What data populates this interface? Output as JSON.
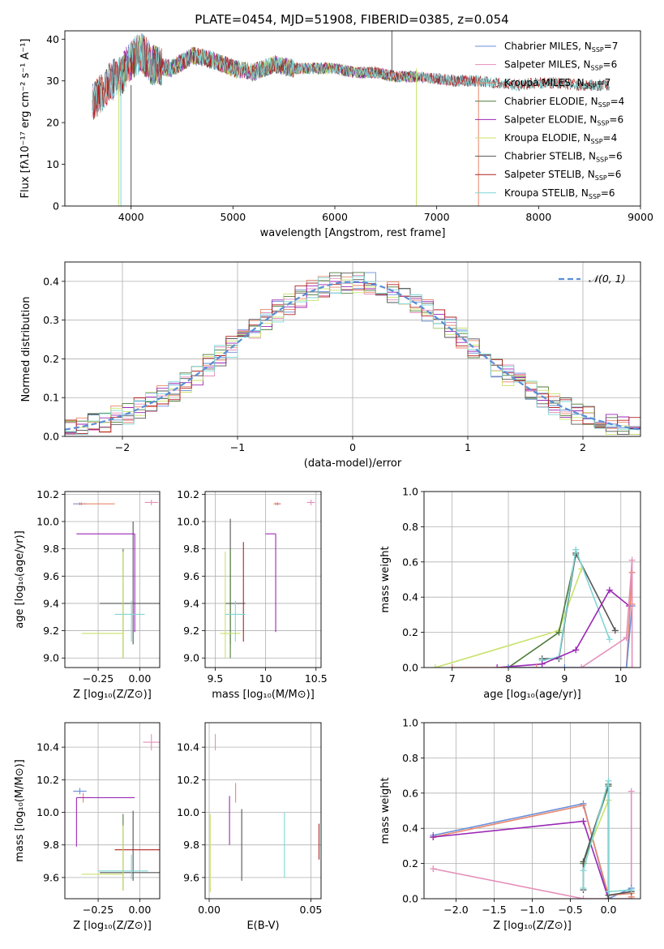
{
  "figure_title": "PLATE=0454, MJD=51908, FIBERID=0385, z=0.054",
  "colors": {
    "chabrier_miles": "#6a8fd8",
    "salpeter_miles": "#e58fb9",
    "kroupa_miles": "#e8866b",
    "chabrier_elodie": "#4d7a38",
    "salpeter_elodie": "#9b27b5",
    "kroupa_elodie": "#c8e26a",
    "chabrier_stelib": "#555555",
    "salpeter_stelib": "#b22222",
    "kroupa_stelib": "#7fd6d6",
    "normal_curve": "#5a8ed6",
    "accent_orange": "#e07a2a"
  },
  "chart_data": [
    {
      "type": "line",
      "title": "PLATE=0454, MJD=51908, FIBERID=0385, z=0.054",
      "xlabel": "wavelength [Angstrom, rest frame]",
      "ylabel": "Flux [fλ10⁻¹⁷ erg cm⁻² s⁻¹ A⁻¹]",
      "xlim": [
        3350,
        9000
      ],
      "ylim": [
        0,
        42
      ],
      "xticks": [
        4000,
        5000,
        6000,
        7000,
        8000,
        9000
      ],
      "yticks": [
        0,
        10,
        20,
        30,
        40
      ],
      "legend": "top-right",
      "series": [
        {
          "name": "Chabrier MILES, N_SSP=7",
          "key": "chabrier_miles",
          "xmin": 3620,
          "xmax": 7400
        },
        {
          "name": "Salpeter MILES, N_SSP=6",
          "key": "salpeter_miles",
          "xmin": 3620,
          "xmax": 7400
        },
        {
          "name": "Kroupa MILES, N_SSP=7",
          "key": "kroupa_miles",
          "xmin": 3620,
          "xmax": 7400
        },
        {
          "name": "Chabrier ELODIE, N_SSP=4",
          "key": "chabrier_elodie",
          "xmin": 3900,
          "xmax": 6800
        },
        {
          "name": "Salpeter ELODIE, N_SSP=6",
          "key": "salpeter_elodie",
          "xmin": 3900,
          "xmax": 6800
        },
        {
          "name": "Kroupa ELODIE, N_SSP=4",
          "key": "kroupa_elodie",
          "xmin": 3900,
          "xmax": 6800
        },
        {
          "name": "Chabrier STELIB, N_SSP=6",
          "key": "chabrier_stelib",
          "xmin": 3620,
          "xmax": 8700
        },
        {
          "name": "Salpeter STELIB, N_SSP=6",
          "key": "salpeter_stelib",
          "xmin": 3620,
          "xmax": 8700
        },
        {
          "name": "Kroupa STELIB, N_SSP=6",
          "key": "kroupa_stelib",
          "xmin": 3620,
          "xmax": 8700
        }
      ],
      "flux_shape": {
        "x": [
          3620,
          3700,
          3800,
          3900,
          4000,
          4100,
          4200,
          4400,
          4600,
          4800,
          5000,
          5200,
          5400,
          5600,
          5800,
          6000,
          6200,
          6400,
          6600,
          6800,
          7000,
          7200,
          7400,
          7600,
          7800,
          8000,
          8200,
          8400,
          8600,
          8700
        ],
        "y": [
          25,
          27,
          30,
          31,
          35,
          37,
          34,
          33,
          36,
          35,
          33,
          32,
          34,
          33,
          33,
          33,
          32,
          32,
          31,
          31,
          30.5,
          30,
          30,
          29.5,
          29,
          29.5,
          29.5,
          29,
          29,
          29
        ]
      },
      "spikes": [
        {
          "x": 3880,
          "y0": 0,
          "y1": 29,
          "key": "kroupa_elodie"
        },
        {
          "x": 3900,
          "y0": 0,
          "y1": 29,
          "key": "kroupa_stelib"
        },
        {
          "x": 4000,
          "y0": 0,
          "y1": 29,
          "key": "chabrier_stelib"
        },
        {
          "x": 6560,
          "y0": 32,
          "y1": 42,
          "key": "chabrier_stelib"
        },
        {
          "x": 6800,
          "y0": 0,
          "y1": 33,
          "key": "kroupa_elodie"
        },
        {
          "x": 7410,
          "y0": 0,
          "y1": 30,
          "key": "kroupa_miles"
        }
      ]
    },
    {
      "type": "histogram",
      "xlabel": "(data-model)/error",
      "ylabel": "Normed distribution",
      "xlim": [
        -2.5,
        2.5
      ],
      "ylim": [
        0,
        0.45
      ],
      "xticks": [
        -2,
        -1,
        0,
        1,
        2
      ],
      "yticks": [
        0.0,
        0.1,
        0.2,
        0.3,
        0.4
      ],
      "bin_edges_start": -2.5,
      "bin_width": 0.1,
      "normal_label": "𝒩(0, 1)",
      "legend": "top-right"
    },
    {
      "type": "scatter",
      "xlabel": "Z [log₁₀(Z/Z⊙)]",
      "ylabel": "age  [log₁₀(age/yr)]",
      "xlim": [
        -0.45,
        0.12
      ],
      "ylim": [
        8.93,
        10.22
      ],
      "xticks": [
        -0.25,
        0.0
      ],
      "xticklabels": [
        "−0.25",
        "0.00"
      ],
      "yticks": [
        9.0,
        9.2,
        9.4,
        9.6,
        9.8,
        10.0,
        10.2
      ],
      "points": [
        {
          "key": "chabrier_miles",
          "x": -0.36,
          "y": 10.13,
          "ex": [
            0.04,
            0.04
          ],
          "ey": [
            0.01,
            0.01
          ]
        },
        {
          "key": "kroupa_miles",
          "x": -0.35,
          "y": 10.13,
          "ex": [
            0.02,
            0.2
          ],
          "ey": [
            0.01,
            0.01
          ]
        },
        {
          "key": "salpeter_miles",
          "x": 0.07,
          "y": 10.14,
          "ex": [
            0.04,
            0.04
          ],
          "ey": [
            0.02,
            0.02
          ]
        },
        {
          "key": "chabrier_stelib",
          "x": -0.04,
          "y": 9.4,
          "ex": [
            0.2,
            0.2
          ],
          "ey": [
            0.3,
            0.6
          ]
        },
        {
          "key": "salpeter_elodie",
          "x": -0.03,
          "y": 9.91,
          "ex": [
            0.35,
            0.0
          ],
          "ey": [
            0.72,
            0.0
          ]
        },
        {
          "key": "chabrier_elodie",
          "x": -0.1,
          "y": 9.5,
          "ex": [
            0.0,
            0.0
          ],
          "ey": [
            0.5,
            0.3
          ]
        },
        {
          "key": "kroupa_elodie",
          "x": -0.1,
          "y": 9.18,
          "ex": [
            0.25,
            0.0
          ],
          "ey": [
            0.18,
            0.6
          ]
        },
        {
          "key": "kroupa_stelib",
          "x": -0.05,
          "y": 9.32,
          "ex": [
            0.1,
            0.08
          ],
          "ey": [
            0.2,
            0.1
          ]
        }
      ]
    },
    {
      "type": "scatter",
      "xlabel": "mass [log₁₀(M/M⊙)]",
      "ylabel": "",
      "xlim": [
        9.4,
        10.55
      ],
      "ylim": [
        8.93,
        10.22
      ],
      "xticks": [
        9.5,
        10.0,
        10.5
      ],
      "yticks": [
        9.0,
        9.2,
        9.4,
        9.6,
        9.8,
        10.0,
        10.2
      ],
      "points": [
        {
          "key": "chabrier_miles",
          "x": 10.12,
          "y": 10.13,
          "ex": [
            0.03,
            0.03
          ],
          "ey": [
            0.01,
            0.01
          ]
        },
        {
          "key": "kroupa_miles",
          "x": 10.1,
          "y": 10.13,
          "ex": [
            0.02,
            0.05
          ],
          "ey": [
            0.01,
            0.01
          ]
        },
        {
          "key": "salpeter_miles",
          "x": 10.45,
          "y": 10.14,
          "ex": [
            0.04,
            0.04
          ],
          "ey": [
            0.02,
            0.02
          ]
        },
        {
          "key": "chabrier_stelib",
          "x": 9.65,
          "y": 9.4,
          "ex": [
            0.05,
            0.15
          ],
          "ey": [
            0.3,
            0.62
          ]
        },
        {
          "key": "salpeter_elodie",
          "x": 10.1,
          "y": 9.91,
          "ex": [
            0.1,
            0.0
          ],
          "ey": [
            0.72,
            0.0
          ]
        },
        {
          "key": "chabrier_elodie",
          "x": 9.65,
          "y": 9.5,
          "ex": [
            0.0,
            0.0
          ],
          "ey": [
            0.5,
            0.3
          ]
        },
        {
          "key": "salpeter_stelib",
          "x": 9.78,
          "y": 9.5,
          "ex": [
            0.0,
            0.0
          ],
          "ey": [
            0.38,
            0.35
          ]
        },
        {
          "key": "kroupa_elodie",
          "x": 9.6,
          "y": 9.18,
          "ex": [
            0.05,
            0.15
          ],
          "ey": [
            0.18,
            0.6
          ]
        },
        {
          "key": "kroupa_stelib",
          "x": 9.7,
          "y": 9.32,
          "ex": [
            0.1,
            0.1
          ],
          "ey": [
            0.2,
            0.1
          ]
        }
      ]
    },
    {
      "type": "line",
      "xlabel": "age  [log₁₀(age/yr)]",
      "ylabel": "mass weight",
      "xlim": [
        6.5,
        10.35
      ],
      "ylim": [
        0,
        1
      ],
      "xticks": [
        7,
        8,
        9,
        10
      ],
      "yticks": [
        0.0,
        0.2,
        0.4,
        0.6,
        0.8,
        1.0
      ],
      "series": [
        {
          "key": "kroupa_elodie",
          "x": [
            6.7,
            8.9,
            9.3
          ],
          "y": [
            0.0,
            0.21,
            0.56
          ]
        },
        {
          "key": "chabrier_elodie",
          "x": [
            8.0,
            8.9,
            9.2
          ],
          "y": [
            0.0,
            0.2,
            0.64
          ]
        },
        {
          "key": "chabrier_stelib",
          "x": [
            8.6,
            8.9,
            9.2,
            9.9
          ],
          "y": [
            0.05,
            0.05,
            0.65,
            0.21
          ]
        },
        {
          "key": "kroupa_stelib",
          "x": [
            8.6,
            8.9,
            9.2,
            9.8
          ],
          "y": [
            0.04,
            0.06,
            0.67,
            0.16
          ]
        },
        {
          "key": "salpeter_elodie",
          "x": [
            7.8,
            8.6,
            9.2,
            9.8,
            10.15
          ],
          "y": [
            0.0,
            0.02,
            0.1,
            0.44,
            0.35
          ]
        },
        {
          "key": "kroupa_miles",
          "x": [
            7.0,
            8.5,
            10.1,
            10.2,
            10.2
          ],
          "y": [
            0.0,
            0.0,
            0.0,
            0.54,
            0.36
          ]
        },
        {
          "key": "chabrier_miles",
          "x": [
            8.0,
            9.0,
            10.1,
            10.2
          ],
          "y": [
            0.0,
            0.0,
            0.0,
            0.35
          ]
        },
        {
          "key": "salpeter_miles",
          "x": [
            9.3,
            10.1,
            10.2,
            10.2
          ],
          "y": [
            0.0,
            0.17,
            0.61,
            0.0
          ]
        }
      ]
    },
    {
      "type": "scatter",
      "xlabel": "Z [log₁₀(Z/Z⊙)]",
      "ylabel": "mass [log₁₀(M/M⊙)]",
      "xlim": [
        -0.45,
        0.12
      ],
      "ylim": [
        9.47,
        10.55
      ],
      "xticks": [
        -0.25,
        0.0
      ],
      "xticklabels": [
        "−0.25",
        "0.00"
      ],
      "yticks": [
        9.6,
        9.8,
        10.0,
        10.2,
        10.4
      ],
      "points": [
        {
          "key": "chabrier_miles",
          "x": -0.36,
          "y": 10.13,
          "ex": [
            0.04,
            0.04
          ],
          "ey": [
            0.02,
            0.02
          ]
        },
        {
          "key": "kroupa_miles",
          "x": -0.34,
          "y": 10.09,
          "ex": [
            0.02,
            0.05
          ],
          "ey": [
            0.03,
            0.03
          ]
        },
        {
          "key": "salpeter_miles",
          "x": 0.07,
          "y": 10.43,
          "ex": [
            0.05,
            0.05
          ],
          "ey": [
            0.05,
            0.05
          ]
        },
        {
          "key": "salpeter_elodie",
          "x": -0.38,
          "y": 10.09,
          "ex": [
            0.0,
            0.35
          ],
          "ey": [
            0.3,
            0.0
          ]
        },
        {
          "key": "salpeter_stelib",
          "x": 0.0,
          "y": 9.77,
          "ex": [
            0.15,
            0.15
          ],
          "ey": [
            0.0,
            0.0
          ]
        },
        {
          "key": "chabrier_stelib",
          "x": -0.04,
          "y": 9.63,
          "ex": [
            0.2,
            0.2
          ],
          "ey": [
            0.05,
            0.38
          ]
        },
        {
          "key": "chabrier_elodie",
          "x": -0.1,
          "y": 9.62,
          "ex": [
            0.0,
            0.0
          ],
          "ey": [
            0.1,
            0.37
          ]
        },
        {
          "key": "kroupa_elodie",
          "x": -0.1,
          "y": 9.62,
          "ex": [
            0.25,
            0.0
          ],
          "ey": [
            0.1,
            0.3
          ]
        },
        {
          "key": "kroupa_stelib",
          "x": -0.05,
          "y": 9.64,
          "ex": [
            0.2,
            0.1
          ],
          "ey": [
            0.05,
            0.1
          ]
        }
      ]
    },
    {
      "type": "scatter",
      "xlabel": "E(B-V)",
      "ylabel": "",
      "xlim": [
        -0.002,
        0.055
      ],
      "ylim": [
        9.47,
        10.55
      ],
      "xticks": [
        0.0,
        0.05
      ],
      "xticklabels": [
        "0.00",
        "0.05"
      ],
      "yticks": [
        9.6,
        9.8,
        10.0,
        10.2,
        10.4
      ],
      "points": [
        {
          "key": "salpeter_miles",
          "x": 0.003,
          "y": 10.43,
          "ex": [
            0,
            0
          ],
          "ey": [
            0.05,
            0.05
          ]
        },
        {
          "key": "kroupa_miles",
          "x": 0.013,
          "y": 10.12,
          "ex": [
            0,
            0
          ],
          "ey": [
            0.06,
            0.06
          ]
        },
        {
          "key": "salpeter_elodie",
          "x": 0.01,
          "y": 9.95,
          "ex": [
            0,
            0
          ],
          "ey": [
            0.15,
            0.15
          ]
        },
        {
          "key": "chabrier_stelib",
          "x": 0.016,
          "y": 9.8,
          "ex": [
            0,
            0
          ],
          "ey": [
            0.22,
            0.22
          ]
        },
        {
          "key": "kroupa_elodie",
          "x": 0.0005,
          "y": 9.75,
          "ex": [
            0,
            0
          ],
          "ey": [
            0.24,
            0.24
          ]
        },
        {
          "key": "kroupa_stelib",
          "x": 0.037,
          "y": 9.8,
          "ex": [
            0,
            0
          ],
          "ey": [
            0.2,
            0.2
          ]
        },
        {
          "key": "salpeter_stelib",
          "x": 0.054,
          "y": 9.82,
          "ex": [
            0,
            0
          ],
          "ey": [
            0.11,
            0.11
          ]
        }
      ]
    },
    {
      "type": "line",
      "xlabel": "Z [log₁₀(Z/Z⊙)]",
      "ylabel": "mass weight",
      "xlim": [
        -2.42,
        0.42
      ],
      "ylim": [
        0,
        1
      ],
      "xticks": [
        -2.0,
        -1.5,
        -1.0,
        -0.5,
        0.0
      ],
      "xticklabels": [
        "−2.0",
        "−1.5",
        "−1.0",
        "−0.5",
        "0.0"
      ],
      "yticks": [
        0.0,
        0.2,
        0.4,
        0.6,
        0.8,
        1.0
      ],
      "series": [
        {
          "key": "salpeter_miles",
          "x": [
            -2.3,
            -0.33,
            0.0,
            0.3,
            0.3
          ],
          "y": [
            0.17,
            0.0,
            0.0,
            0.0,
            0.61
          ]
        },
        {
          "key": "chabrier_miles",
          "x": [
            -2.3,
            -0.33,
            0.0,
            0.3
          ],
          "y": [
            0.36,
            0.54,
            0.0,
            0.06
          ]
        },
        {
          "key": "kroupa_miles",
          "x": [
            -2.3,
            -0.33,
            0.0,
            0.3,
            0.3
          ],
          "y": [
            0.35,
            0.53,
            0.02,
            0.03,
            0.01
          ]
        },
        {
          "key": "salpeter_elodie",
          "x": [
            -2.3,
            -0.33,
            0.0
          ],
          "y": [
            0.35,
            0.44,
            0.0
          ]
        },
        {
          "key": "kroupa_elodie",
          "x": [
            -0.33,
            0.0,
            0.0
          ],
          "y": [
            0.21,
            0.56,
            0.0
          ]
        },
        {
          "key": "chabrier_elodie",
          "x": [
            -0.33,
            0.0,
            0.0
          ],
          "y": [
            0.2,
            0.64,
            0.0
          ]
        },
        {
          "key": "chabrier_stelib",
          "x": [
            -0.33,
            -0.33,
            0.0,
            0.0,
            0.3
          ],
          "y": [
            0.05,
            0.21,
            0.65,
            0.02,
            0.04
          ]
        },
        {
          "key": "kroupa_stelib",
          "x": [
            -0.33,
            -0.33,
            0.0,
            0.0,
            0.3
          ],
          "y": [
            0.06,
            0.16,
            0.67,
            0.04,
            0.05
          ]
        }
      ]
    }
  ]
}
